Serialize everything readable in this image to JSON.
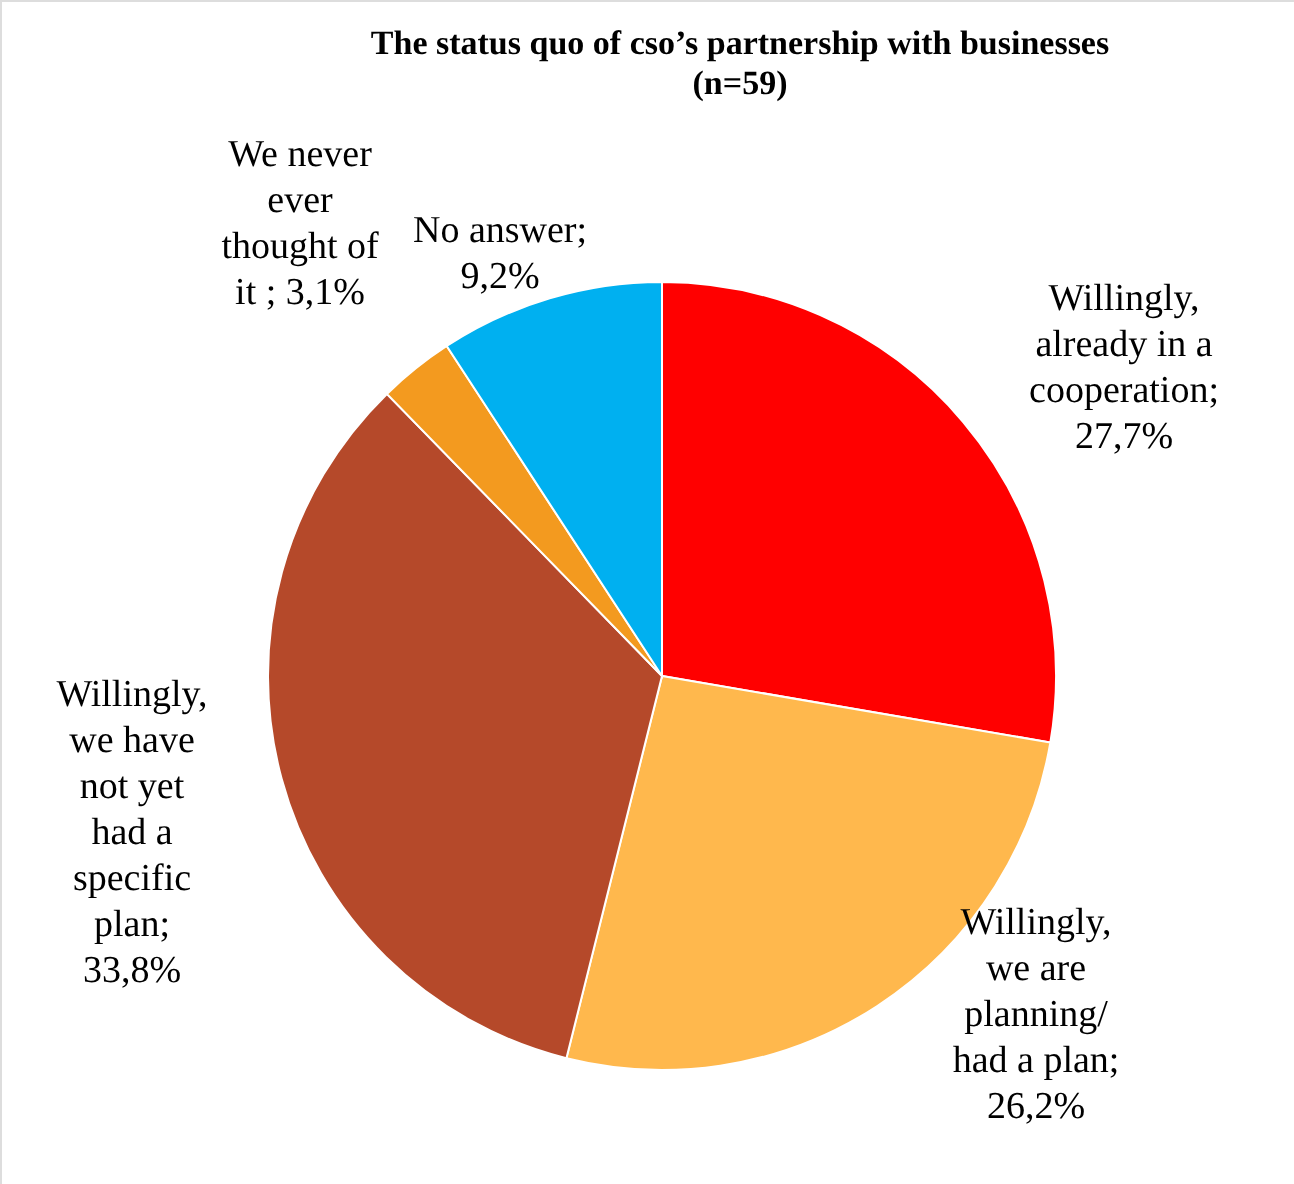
{
  "chart_data": {
    "type": "pie",
    "title": "The status quo of cso’s partnership with businesses (n=59)",
    "categories": [
      "Willingly, already in a cooperation",
      "Willingly, we are planning/ had a plan",
      "Willingly, we have not yet had a specific plan",
      "We never ever thought of it",
      "No answer"
    ],
    "values": [
      27.7,
      26.2,
      33.8,
      3.1,
      9.2
    ],
    "value_labels": [
      "; 27,7%",
      "; 26,2%",
      "; 33,8%",
      " ; 3,1%",
      "; 9,2%"
    ],
    "colors": [
      "#ff0000",
      "#ffb84d",
      "#b5492a",
      "#f39a1f",
      "#00b0f0"
    ]
  }
}
